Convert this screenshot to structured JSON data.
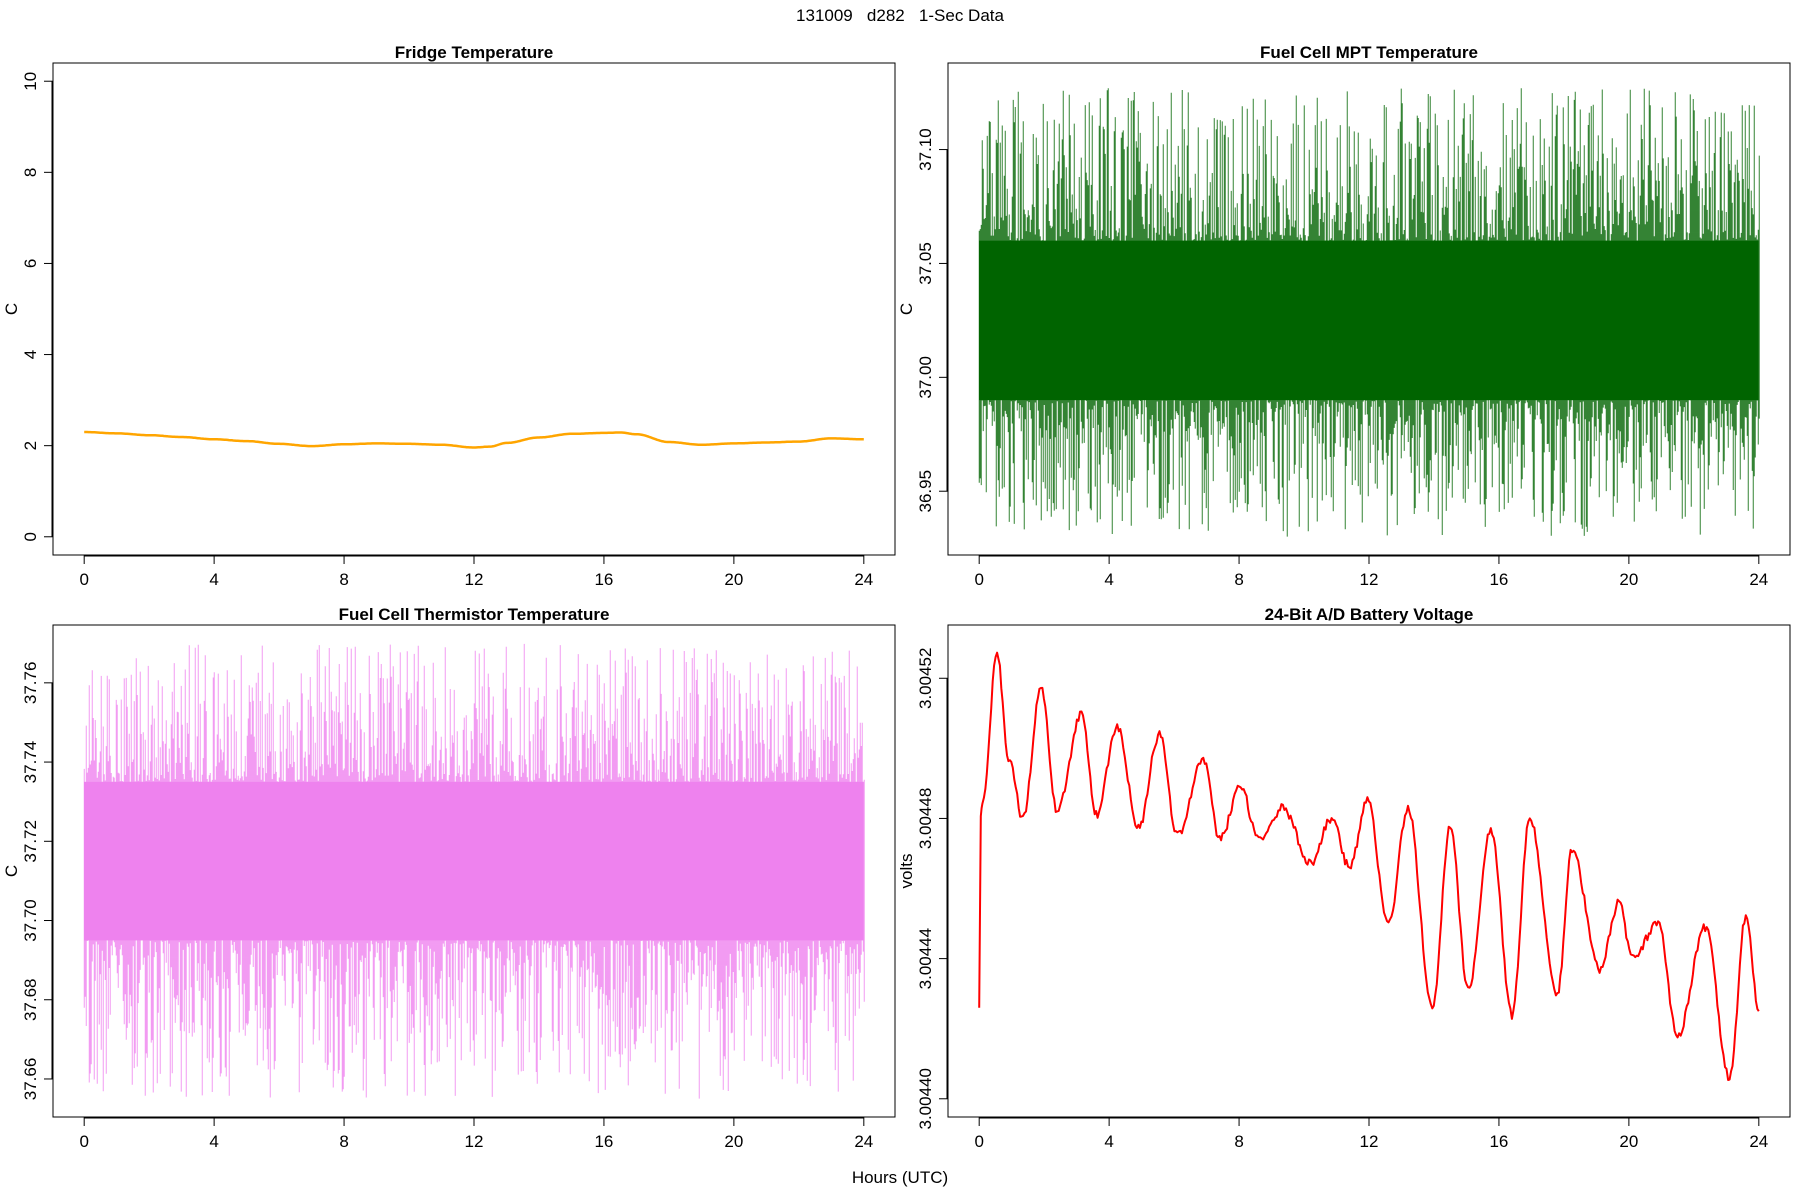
{
  "page": {
    "title": "131009   d282   1-Sec Data",
    "x_axis_title": "Hours (UTC)"
  },
  "chart_data": [
    {
      "type": "line",
      "title": "Fridge Temperature",
      "xlabel": "Hours (UTC)",
      "ylabel": "C",
      "xlim": [
        0,
        24
      ],
      "ylim": [
        0,
        10
      ],
      "x_ticks": [
        0,
        4,
        8,
        12,
        16,
        20,
        24
      ],
      "y_ticks": [
        "0",
        "2",
        "4",
        "6",
        "8",
        "10"
      ],
      "color": "#FFA500",
      "grid": false,
      "series": [
        {
          "x": [
            0,
            1,
            2,
            3,
            4,
            5,
            6,
            7,
            8,
            9,
            10,
            11,
            12,
            12.5,
            13,
            14,
            15,
            16,
            16.5,
            17,
            18,
            19,
            20,
            21,
            22,
            23,
            24
          ],
          "y": [
            2.3,
            2.27,
            2.23,
            2.19,
            2.14,
            2.1,
            2.04,
            1.99,
            2.03,
            2.05,
            2.04,
            2.02,
            1.96,
            1.98,
            2.06,
            2.18,
            2.26,
            2.28,
            2.29,
            2.25,
            2.08,
            2.02,
            2.05,
            2.07,
            2.09,
            2.16,
            2.14
          ]
        }
      ]
    },
    {
      "type": "line",
      "title": "Fuel Cell MPT Temperature",
      "xlabel": "Hours (UTC)",
      "ylabel": "C",
      "xlim": [
        0,
        24
      ],
      "ylim": [
        36.93,
        37.13
      ],
      "x_ticks": [
        0,
        4,
        8,
        12,
        16,
        20,
        24
      ],
      "y_ticks": [
        "36.95",
        "37.00",
        "37.05",
        "37.10"
      ],
      "color": "#006400",
      "grid": false,
      "series": [
        {
          "x": [
            0,
            24
          ],
          "band_low": [
            36.99,
            36.99
          ],
          "band_high": [
            37.06,
            37.06
          ],
          "min": 36.93,
          "max": 37.127,
          "mean": 37.03
        }
      ]
    },
    {
      "type": "line",
      "title": "Fuel Cell Thermistor Temperature",
      "xlabel": "Hours (UTC)",
      "ylabel": "C",
      "xlim": [
        0,
        24
      ],
      "ylim": [
        37.655,
        37.77
      ],
      "x_ticks": [
        0,
        4,
        8,
        12,
        16,
        20,
        24
      ],
      "y_ticks": [
        "37.66",
        "37.68",
        "37.70",
        "37.72",
        "37.74",
        "37.76"
      ],
      "color": "#EE82EE",
      "grid": false,
      "series": [
        {
          "x": [
            0,
            24
          ],
          "band_low": [
            37.695,
            37.695
          ],
          "band_high": [
            37.735,
            37.735
          ],
          "min": 37.655,
          "max": 37.77,
          "mean": 37.715
        }
      ]
    },
    {
      "type": "line",
      "title": "24-Bit A/D Battery Voltage",
      "xlabel": "Hours (UTC)",
      "ylabel": "volts",
      "xlim": [
        0,
        24
      ],
      "ylim": [
        3.0044,
        3.00453
      ],
      "x_ticks": [
        0,
        4,
        8,
        12,
        16,
        20,
        24
      ],
      "y_ticks": [
        "3.00440",
        "3.00444",
        "3.00448",
        "3.00452"
      ],
      "color": "#FF0000",
      "grid": false,
      "series": [
        {
          "x": [
            0,
            0.05,
            0.1,
            0.55,
            0.9,
            1.35,
            1.9,
            2.4,
            3.15,
            3.6,
            4.25,
            4.9,
            5.55,
            6.1,
            6.9,
            7.4,
            8.05,
            8.6,
            9.35,
            10.2,
            10.85,
            11.4,
            11.95,
            12.6,
            13.2,
            13.95,
            14.5,
            15.05,
            15.75,
            16.4,
            16.95,
            17.8,
            18.25,
            19.1,
            19.7,
            20.1,
            20.9,
            21.5,
            22.35,
            23.1,
            23.6,
            24
          ],
          "y": [
            3.004426,
            3.004481,
            3.004484,
            3.004527,
            3.004497,
            3.00448,
            3.004517,
            3.004482,
            3.00451,
            3.004481,
            3.004506,
            3.004477,
            3.004504,
            3.004475,
            3.004497,
            3.004474,
            3.004489,
            3.004474,
            3.004483,
            3.004467,
            3.00448,
            3.004466,
            3.004485,
            3.00445,
            3.004483,
            3.004426,
            3.004478,
            3.004431,
            3.004477,
            3.004424,
            3.00448,
            3.00443,
            3.004471,
            3.004437,
            3.004456,
            3.00444,
            3.00445,
            3.004418,
            3.004449,
            3.004406,
            3.004452,
            3.004425
          ]
        }
      ]
    }
  ]
}
